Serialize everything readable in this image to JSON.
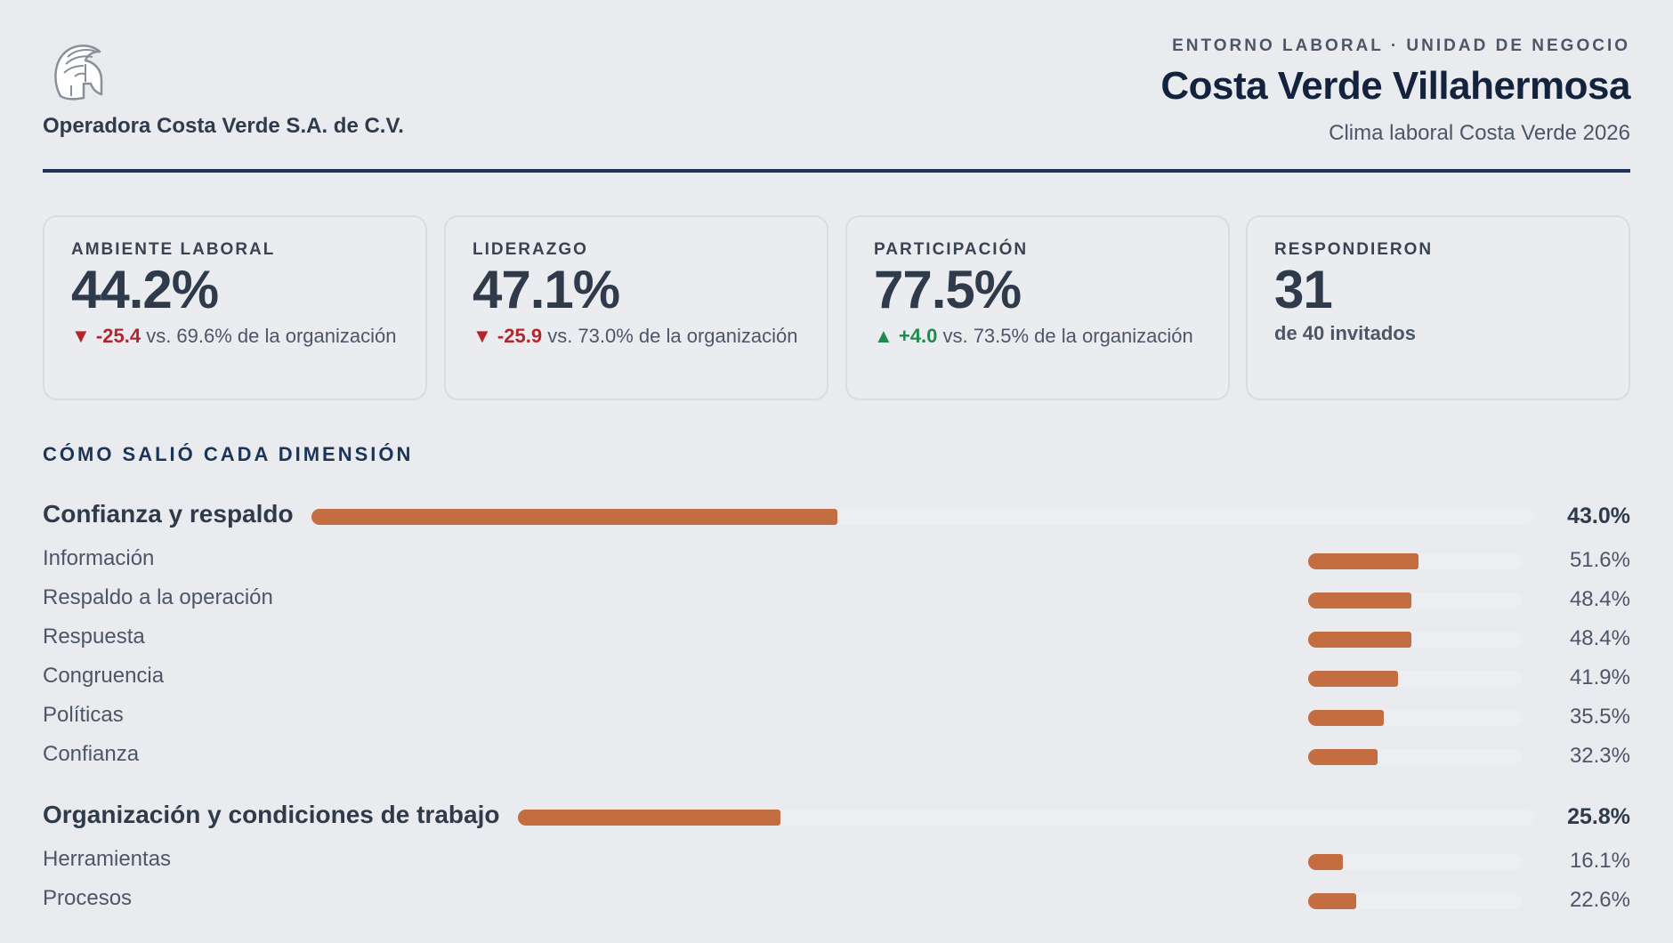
{
  "header": {
    "company": "Operadora Costa Verde S.A. de C.V.",
    "eyebrow": "ENTORNO LABORAL · UNIDAD DE NEGOCIO",
    "unit_title": "Costa Verde Villahermosa",
    "survey": "Clima laboral Costa Verde 2026",
    "logo_icon": "spartan-helmet-icon"
  },
  "kpis": [
    {
      "label": "AMBIENTE LABORAL",
      "value": "44.2%",
      "trend": "down",
      "arrow": "▼",
      "delta": "-25.4",
      "comparison": "vs. 69.6% de la organización"
    },
    {
      "label": "LIDERAZGO",
      "value": "47.1%",
      "trend": "down",
      "arrow": "▼",
      "delta": "-25.9",
      "comparison": "vs. 73.0% de la organización"
    },
    {
      "label": "PARTICIPACIÓN",
      "value": "77.5%",
      "trend": "up",
      "arrow": "▲",
      "delta": "+4.0",
      "comparison": "vs. 73.5% de la organización"
    },
    {
      "label": "RESPONDIERON",
      "value": "31",
      "sub": "de 40 invitados"
    }
  ],
  "section_title": "CÓMO SALIÓ CADA DIMENSIÓN",
  "colors": {
    "bar": "#c46d40",
    "down": "#b3262d",
    "up": "#1f8a4c",
    "accent_line": "#1b3458"
  },
  "dimensions": [
    {
      "name": "Confianza y respaldo",
      "value": 43.0,
      "pct": "43.0%",
      "items": [
        {
          "name": "Información",
          "value": 51.6,
          "pct": "51.6%"
        },
        {
          "name": "Respaldo a la operación",
          "value": 48.4,
          "pct": "48.4%"
        },
        {
          "name": "Respuesta",
          "value": 48.4,
          "pct": "48.4%"
        },
        {
          "name": "Congruencia",
          "value": 41.9,
          "pct": "41.9%"
        },
        {
          "name": "Políticas",
          "value": 35.5,
          "pct": "35.5%"
        },
        {
          "name": "Confianza",
          "value": 32.3,
          "pct": "32.3%"
        }
      ]
    },
    {
      "name": "Organización y condiciones de trabajo",
      "value": 25.8,
      "pct": "25.8%",
      "items": [
        {
          "name": "Herramientas",
          "value": 16.1,
          "pct": "16.1%"
        },
        {
          "name": "Procesos",
          "value": 22.6,
          "pct": "22.6%"
        }
      ]
    }
  ]
}
